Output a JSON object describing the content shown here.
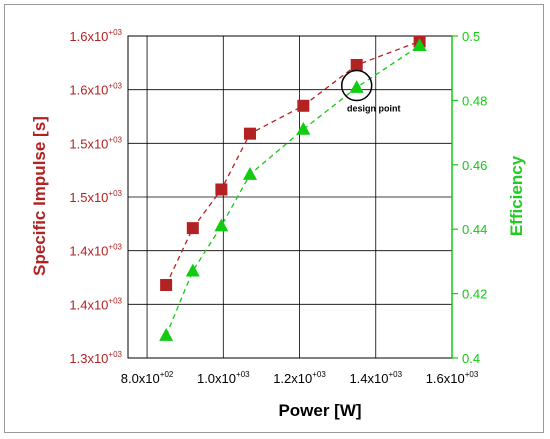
{
  "colors": {
    "impulse": "#b22222",
    "efficiency": "#11cc11",
    "impulse_title": "#b22222",
    "efficiency_title": "#22cc22",
    "grid": "#000000",
    "axis": "#000000"
  },
  "chart_data": {
    "type": "scatter",
    "title": "",
    "xlabel": "Power [W]",
    "ylabel_left": "Specific Impulse [s]",
    "ylabel_right": "Efficiency",
    "xlim": [
      750,
      1600
    ],
    "ylim_left": [
      1300,
      1600
    ],
    "ylim_right": [
      0.4,
      0.5
    ],
    "grid": true,
    "x_ticks": [
      {
        "value": 800,
        "mantissa": "8.0x10",
        "exp": "+02"
      },
      {
        "value": 1000,
        "mantissa": "1.0x10",
        "exp": "+03"
      },
      {
        "value": 1200,
        "mantissa": "1.2x10",
        "exp": "+03"
      },
      {
        "value": 1400,
        "mantissa": "1.4x10",
        "exp": "+03"
      },
      {
        "value": 1600,
        "mantissa": "1.6x10",
        "exp": "+03"
      }
    ],
    "y_left_ticks": [
      {
        "value": 1300,
        "mantissa": "1.3x10",
        "exp": "+03"
      },
      {
        "value": 1350,
        "mantissa": "1.4x10",
        "exp": "+03"
      },
      {
        "value": 1400,
        "mantissa": "1.4x10",
        "exp": "+03"
      },
      {
        "value": 1450,
        "mantissa": "1.5x10",
        "exp": "+03"
      },
      {
        "value": 1500,
        "mantissa": "1.5x10",
        "exp": "+03"
      },
      {
        "value": 1550,
        "mantissa": "1.6x10",
        "exp": "+03"
      },
      {
        "value": 1600,
        "mantissa": "1.6x10",
        "exp": "+03"
      }
    ],
    "y_right_ticks": [
      {
        "value": 0.4,
        "label": "0.4"
      },
      {
        "value": 0.42,
        "label": "0.42"
      },
      {
        "value": 0.44,
        "label": "0.44"
      },
      {
        "value": 0.46,
        "label": "0.46"
      },
      {
        "value": 0.48,
        "label": "0.48"
      },
      {
        "value": 0.5,
        "label": "0.5"
      }
    ],
    "series": [
      {
        "marker": "square",
        "axis": "left",
        "x": [
          850,
          920,
          995,
          1070,
          1210,
          1350,
          1515
        ],
        "y": [
          1368,
          1421,
          1457,
          1509,
          1535,
          1573,
          1595
        ]
      },
      {
        "marker": "triangle",
        "axis": "right",
        "x": [
          850,
          920,
          995,
          1070,
          1210,
          1350,
          1515
        ],
        "y": [
          0.407,
          0.427,
          0.441,
          0.457,
          0.471,
          0.484,
          0.497
        ]
      }
    ],
    "annotations": [
      {
        "text": "design point",
        "x": 1350,
        "y_right": 0.484
      }
    ]
  }
}
